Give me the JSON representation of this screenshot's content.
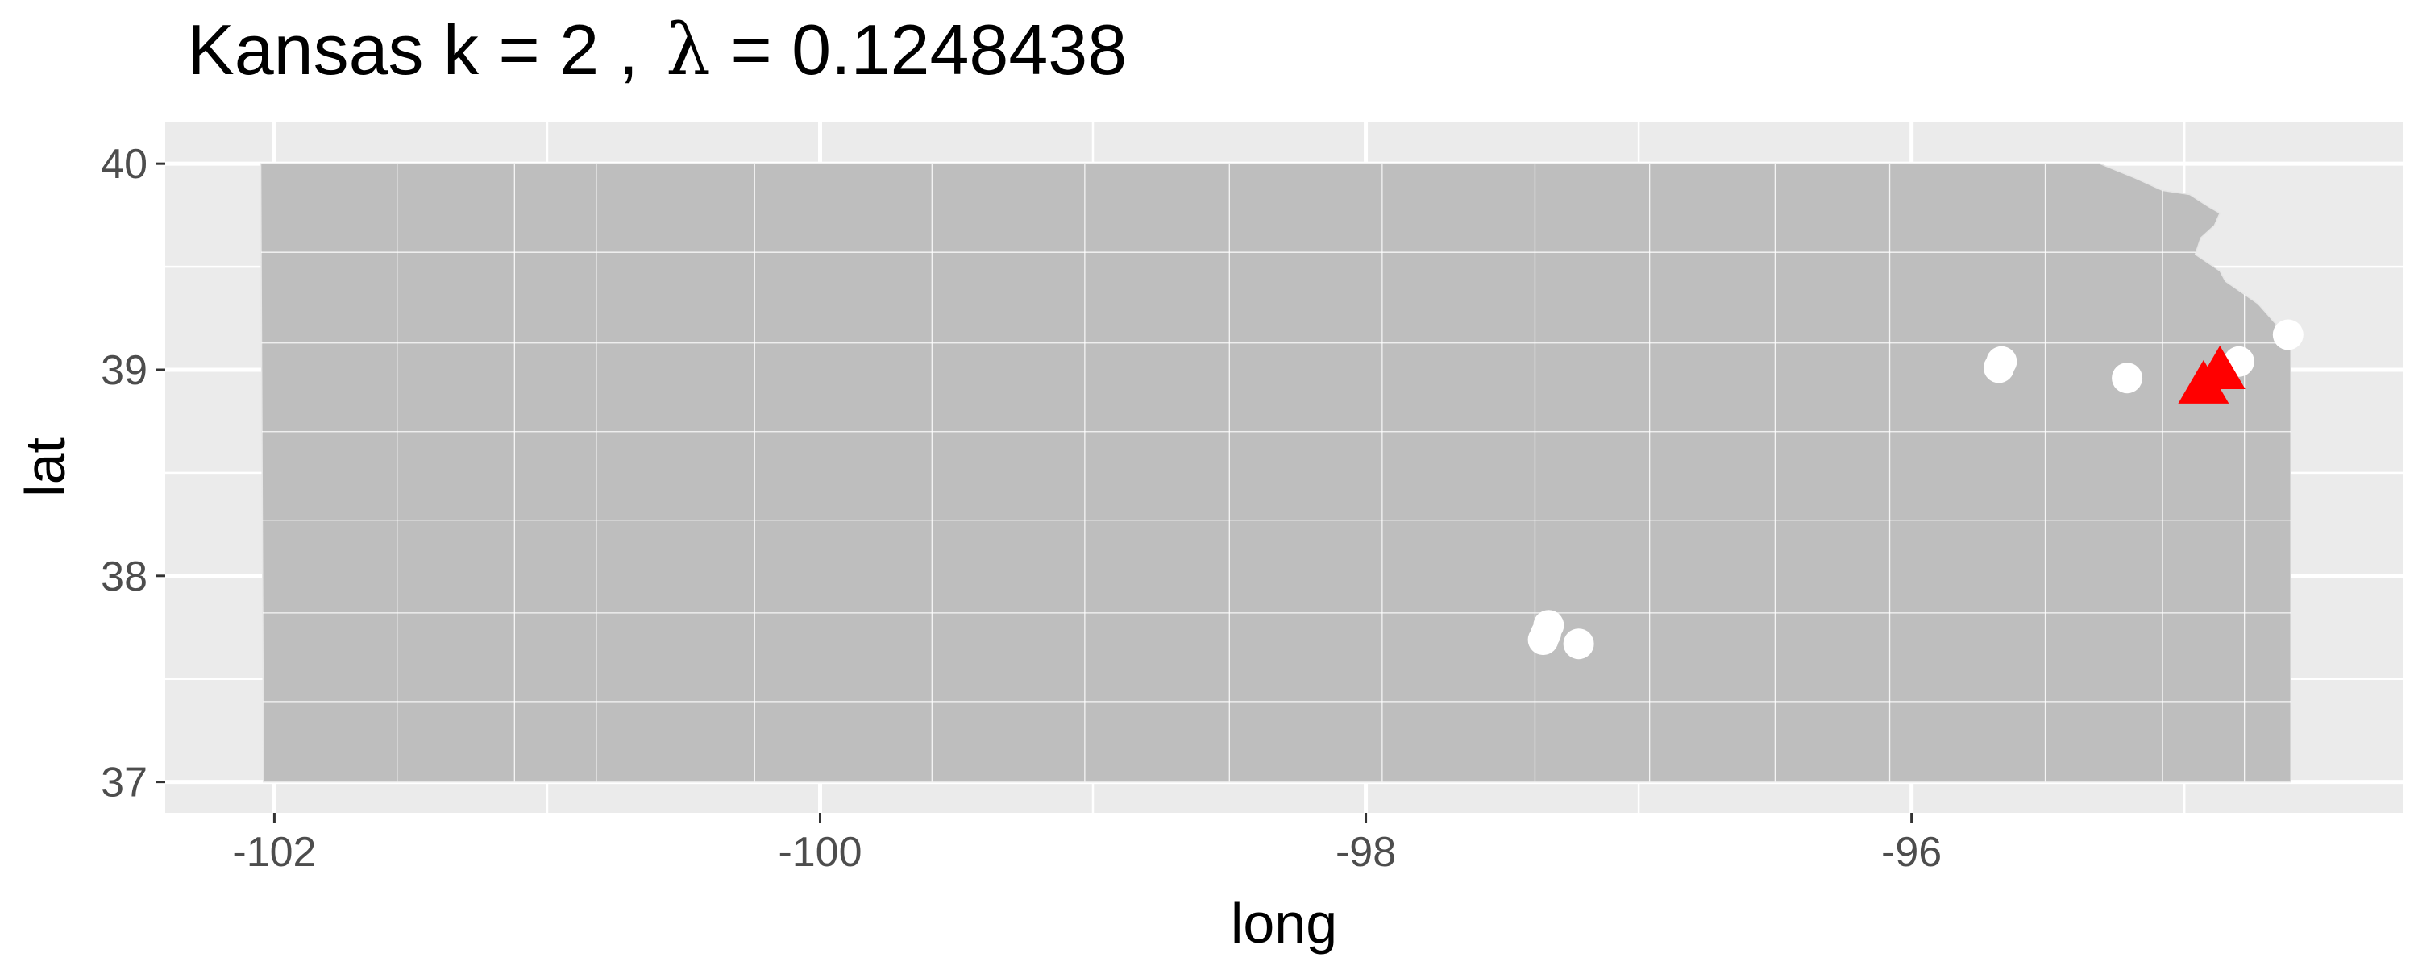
{
  "chart_data": {
    "type": "scatter",
    "title_parts": {
      "prefix": "Kansas  k =  2 ,",
      "lambda": "λ",
      "suffix": " =  0.1248438"
    },
    "xlabel": "long",
    "ylabel": "lat",
    "xlim": [
      -102.4,
      -94.2
    ],
    "ylim": [
      36.85,
      40.2
    ],
    "x_ticks": [
      {
        "value": -102,
        "label": "-102"
      },
      {
        "value": -100,
        "label": "-100"
      },
      {
        "value": -98,
        "label": "-98"
      },
      {
        "value": -96,
        "label": "-96"
      }
    ],
    "y_ticks": [
      {
        "value": 37,
        "label": "37"
      },
      {
        "value": 38,
        "label": "38"
      },
      {
        "value": 39,
        "label": "39"
      },
      {
        "value": 40,
        "label": "40"
      }
    ],
    "grid": true,
    "panel_background": "#ebebeb",
    "region_fill": "#bebebe",
    "boundary_color": "#ffffff",
    "point_color": "#ffffff",
    "center_color": "#ff0000",
    "state_outline": [
      [
        -102.05,
        40.0
      ],
      [
        -95.31,
        40.0
      ],
      [
        -95.18,
        39.93
      ],
      [
        -95.08,
        39.87
      ],
      [
        -94.98,
        39.85
      ],
      [
        -94.91,
        39.79
      ],
      [
        -94.87,
        39.76
      ],
      [
        -94.89,
        39.7
      ],
      [
        -94.94,
        39.64
      ],
      [
        -94.96,
        39.56
      ],
      [
        -94.87,
        39.48
      ],
      [
        -94.85,
        39.43
      ],
      [
        -94.73,
        39.32
      ],
      [
        -94.61,
        39.14
      ],
      [
        -94.61,
        37.0
      ],
      [
        -102.04,
        37.0
      ]
    ],
    "points": [
      {
        "x": -95.67,
        "y": 39.04
      },
      {
        "x": -95.68,
        "y": 39.01
      },
      {
        "x": -95.21,
        "y": 38.96
      },
      {
        "x": -94.8,
        "y": 39.04
      },
      {
        "x": -94.62,
        "y": 39.17
      },
      {
        "x": -97.33,
        "y": 37.76
      },
      {
        "x": -97.34,
        "y": 37.72
      },
      {
        "x": -97.35,
        "y": 37.69
      },
      {
        "x": -97.22,
        "y": 37.67
      }
    ],
    "centers": [
      {
        "x": -94.87,
        "y": 39.0
      },
      {
        "x": -94.93,
        "y": 38.93
      }
    ]
  }
}
